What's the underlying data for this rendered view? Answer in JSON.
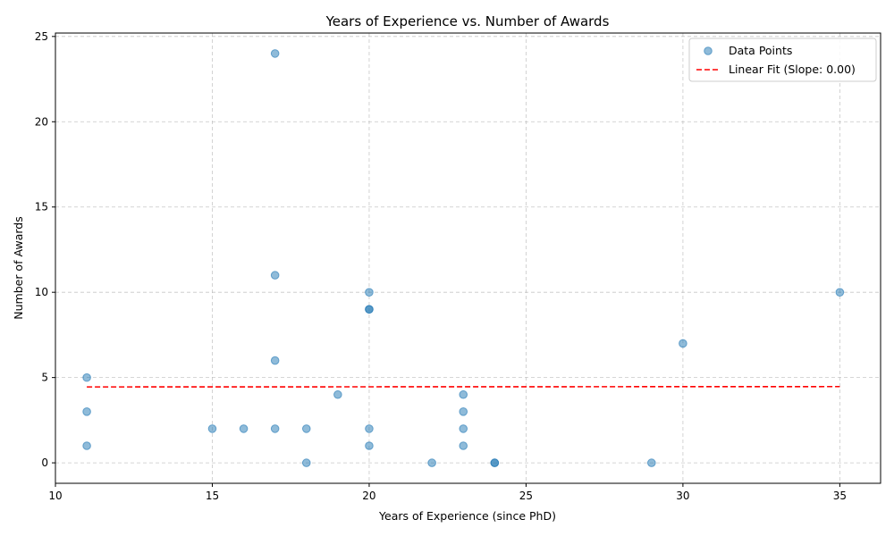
{
  "chart_data": {
    "type": "scatter",
    "title": "Years of Experience vs. Number of Awards",
    "xlabel": "Years of Experience (since PhD)",
    "ylabel": "Number of Awards",
    "xlim": [
      10,
      36.3
    ],
    "ylim": [
      -1.2,
      25.2
    ],
    "xticks": [
      10,
      15,
      20,
      25,
      30,
      35
    ],
    "yticks": [
      0,
      5,
      10,
      15,
      20,
      25
    ],
    "grid": true,
    "legend_position": "top-right",
    "series": [
      {
        "name": "Data Points",
        "kind": "scatter",
        "color": "#1f77b4",
        "x": [
          17,
          11,
          11,
          11,
          15,
          16,
          17,
          17,
          17,
          18,
          18,
          19,
          20,
          20,
          20,
          20,
          20,
          22,
          23,
          23,
          23,
          23,
          24,
          24,
          29,
          30,
          35
        ],
        "y": [
          24,
          5,
          3,
          1,
          2,
          2,
          11,
          6,
          2,
          2,
          0,
          4,
          10,
          9,
          9,
          2,
          1,
          0,
          4,
          3,
          2,
          1,
          0,
          0,
          0,
          7,
          10
        ]
      },
      {
        "name": "Linear Fit (Slope: 0.00)",
        "kind": "line",
        "color": "#ff0000",
        "dashed": true,
        "x": [
          11,
          35
        ],
        "y": [
          4.45,
          4.47
        ]
      }
    ]
  }
}
